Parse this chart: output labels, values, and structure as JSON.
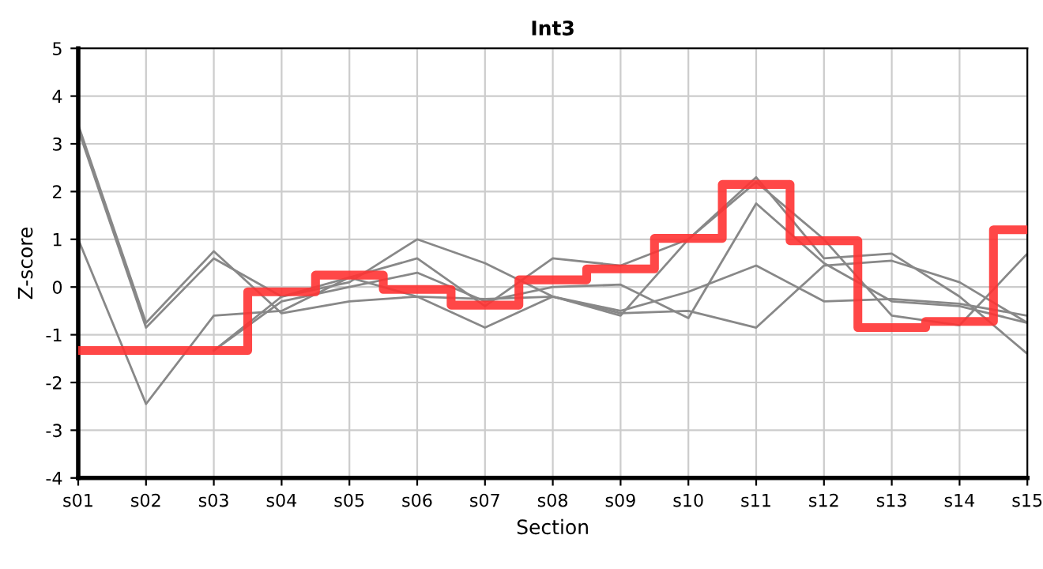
{
  "chart_data": {
    "type": "line",
    "title": "Int3",
    "xlabel": "Section",
    "ylabel": "Z-score",
    "categories": [
      "s01",
      "s02",
      "s03",
      "s04",
      "s05",
      "s06",
      "s07",
      "s08",
      "s09",
      "s10",
      "s11",
      "s12",
      "s13",
      "s14",
      "s15"
    ],
    "series": [
      {
        "color": "#888888",
        "values": [
          3.4,
          -0.75,
          0.75,
          -0.55,
          -0.3,
          -0.2,
          -0.25,
          -0.2,
          -0.55,
          -0.5,
          -0.85,
          0.45,
          0.55,
          0.1,
          -0.75
        ]
      },
      {
        "color": "#888888",
        "values": [
          3.3,
          -0.85,
          0.6,
          -0.2,
          0.1,
          1.0,
          0.5,
          -0.2,
          -0.5,
          -0.1,
          0.45,
          -0.3,
          -0.25,
          -0.35,
          -0.6
        ]
      },
      {
        "color": "#888888",
        "values": [
          1.0,
          -2.45,
          -0.6,
          -0.5,
          0.2,
          0.6,
          -0.4,
          0.6,
          0.45,
          1.0,
          2.2,
          1.0,
          -0.6,
          -0.8,
          0.7
        ]
      },
      {
        "color": "#888888",
        "values": [
          null,
          null,
          -1.33,
          -0.3,
          0.0,
          0.3,
          -0.3,
          0.0,
          0.05,
          -0.65,
          1.75,
          0.5,
          -0.3,
          -0.4,
          -0.75
        ]
      },
      {
        "color": "#888888",
        "values": [
          null,
          null,
          -1.33,
          -0.2,
          0.2,
          -0.2,
          -0.85,
          -0.2,
          -0.6,
          1.0,
          2.3,
          0.6,
          0.7,
          -0.2,
          -1.4
        ]
      },
      {
        "type": "step",
        "color": "#ff3333",
        "values": [
          -1.33,
          -1.33,
          -1.33,
          -0.1,
          0.25,
          -0.05,
          -0.38,
          0.15,
          0.38,
          1.02,
          2.15,
          0.97,
          -0.85,
          -0.72,
          1.2
        ]
      }
    ],
    "ylim": [
      -4,
      5
    ],
    "yticks": [
      -4,
      -3,
      -2,
      -1,
      0,
      1,
      2,
      3,
      4,
      5
    ],
    "grid": true,
    "legend": false
  }
}
